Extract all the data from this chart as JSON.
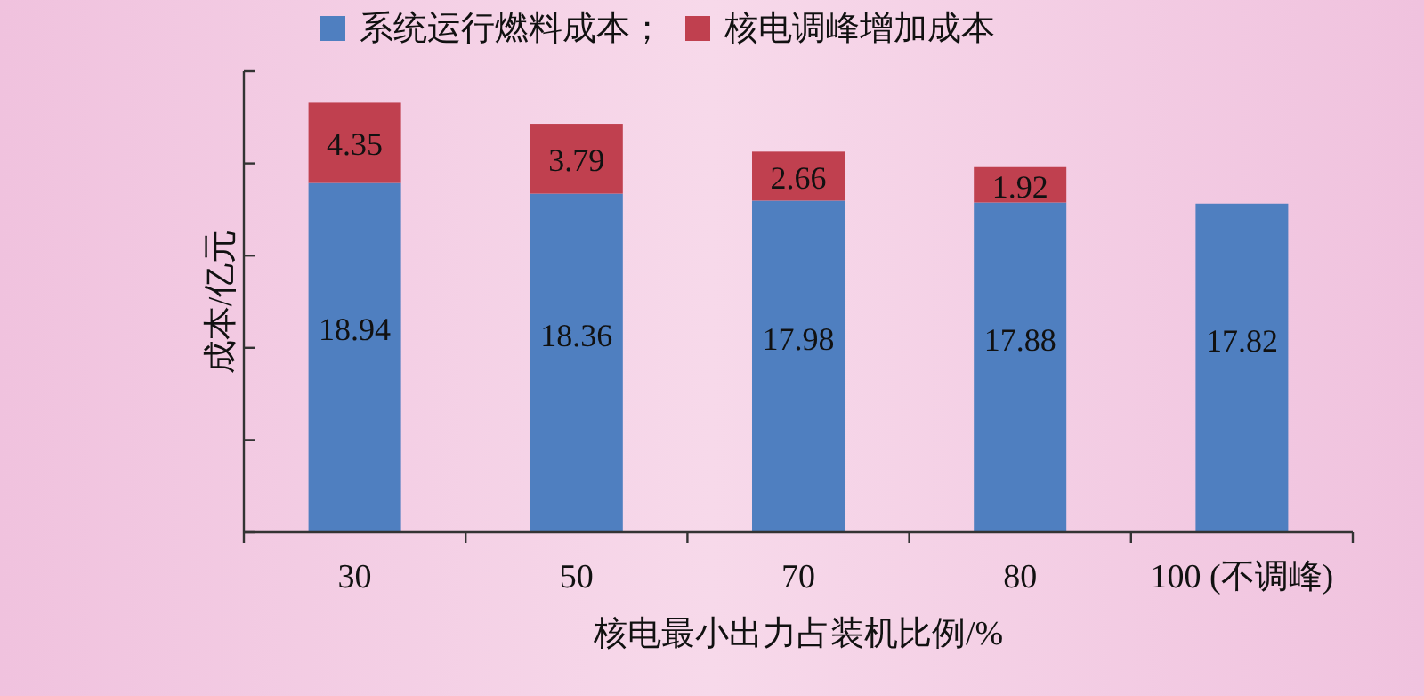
{
  "chart_data": {
    "type": "bar",
    "stacked": true,
    "xlabel": "核电最小出力占装机比例/%",
    "ylabel": "成本/亿元",
    "categories": [
      "30",
      "50",
      "70",
      "80",
      "100 (不调峰)"
    ],
    "series": [
      {
        "name": "系统运行燃料成本；",
        "color": "#4f7fc0",
        "values": [
          18.94,
          18.36,
          17.98,
          17.88,
          17.82
        ]
      },
      {
        "name": "核电调峰增加成本",
        "color": "#c0404f",
        "values": [
          4.35,
          3.79,
          2.66,
          1.92,
          null
        ]
      }
    ],
    "ylim": [
      0,
      25
    ],
    "yticks": [
      {
        "value": 0,
        "label": null
      },
      {
        "value": 5,
        "label": null
      },
      {
        "value": 10,
        "label": null
      },
      {
        "value": 15,
        "label": null
      },
      {
        "value": 20,
        "label": null
      },
      {
        "value": 25,
        "label": null
      }
    ],
    "data_labels": true,
    "legend": "top",
    "grid": false
  }
}
